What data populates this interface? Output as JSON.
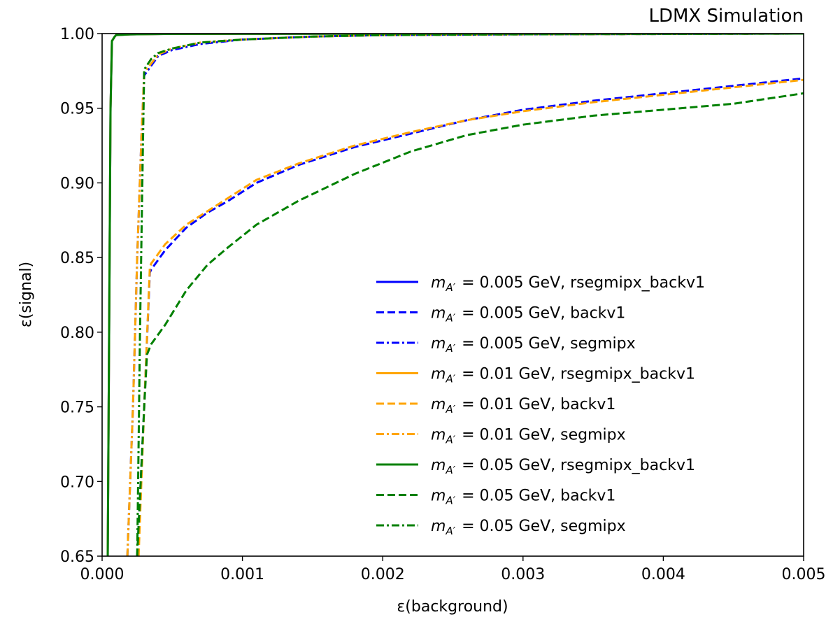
{
  "chart_data": {
    "type": "line",
    "title": "LDMX Simulation",
    "xlabel": "ε(background)",
    "ylabel": "ε(signal)",
    "xlim": [
      0.0,
      0.005
    ],
    "ylim": [
      0.65,
      1.0
    ],
    "xticks": [
      "0.000",
      "0.001",
      "0.002",
      "0.003",
      "0.004",
      "0.005"
    ],
    "yticks": [
      "0.65",
      "0.70",
      "0.75",
      "0.80",
      "0.85",
      "0.90",
      "0.95",
      "1.00"
    ],
    "grid": false,
    "legend_position": "lower-right",
    "colors": {
      "blue": "#0000ff",
      "orange": "#ffa500",
      "green": "#008000"
    },
    "series": [
      {
        "name": "m_A' = 0.005 GeV, rsegmipx_backv1",
        "legend": {
          "prefix": "m",
          "subscript": "A′",
          "text": "= 0.005 GeV, rsegmipx_backv1"
        },
        "color": "#0000ff",
        "dash": "solid",
        "x": [
          4e-05,
          5e-05,
          6e-05,
          7e-05,
          9e-05,
          0.0001,
          0.0002,
          0.0005,
          0.001,
          0.005
        ],
        "y": [
          0.65,
          0.8,
          0.95,
          0.995,
          0.998,
          0.999,
          0.9995,
          0.9998,
          0.9999,
          1.0
        ]
      },
      {
        "name": "m_A' = 0.005 GeV, backv1",
        "legend": {
          "prefix": "m",
          "subscript": "A′",
          "text": "= 0.005 GeV, backv1"
        },
        "color": "#0000ff",
        "dash": "dashed",
        "x": [
          0.00025,
          0.0003,
          0.00034,
          0.00035,
          0.00045,
          0.0006,
          0.00075,
          0.0009,
          0.0011,
          0.0014,
          0.0018,
          0.0022,
          0.0026,
          0.003,
          0.0035,
          0.004,
          0.0045,
          0.005
        ],
        "y": [
          0.65,
          0.75,
          0.84,
          0.842,
          0.855,
          0.87,
          0.88,
          0.888,
          0.9,
          0.912,
          0.924,
          0.933,
          0.942,
          0.949,
          0.955,
          0.96,
          0.965,
          0.97
        ]
      },
      {
        "name": "m_A' = 0.005 GeV, segmipx",
        "legend": {
          "prefix": "m",
          "subscript": "A′",
          "text": "= 0.005 GeV, segmipx"
        },
        "color": "#0000ff",
        "dash": "dashdot",
        "x": [
          0.00018,
          0.00022,
          0.00025,
          0.00028,
          0.0003,
          0.0004,
          0.0005,
          0.0007,
          0.001,
          0.0015,
          0.002,
          0.003,
          0.005
        ],
        "y": [
          0.65,
          0.75,
          0.85,
          0.93,
          0.972,
          0.985,
          0.989,
          0.993,
          0.996,
          0.998,
          0.999,
          0.9995,
          1.0
        ]
      },
      {
        "name": "m_A' = 0.01 GeV, rsegmipx_backv1",
        "legend": {
          "prefix": "m",
          "subscript": "A′",
          "text": "= 0.01 GeV, rsegmipx_backv1"
        },
        "color": "#ffa500",
        "dash": "solid",
        "x": [
          4e-05,
          5e-05,
          6e-05,
          7e-05,
          9e-05,
          0.0001,
          0.0002,
          0.0005,
          0.001,
          0.005
        ],
        "y": [
          0.65,
          0.8,
          0.95,
          0.995,
          0.998,
          0.999,
          0.9995,
          0.9998,
          0.9999,
          1.0
        ]
      },
      {
        "name": "m_A' = 0.01 GeV, backv1",
        "legend": {
          "prefix": "m",
          "subscript": "A′",
          "text": "= 0.01 GeV, backv1"
        },
        "color": "#ffa500",
        "dash": "dashed",
        "x": [
          0.00026,
          0.0003,
          0.00034,
          0.00035,
          0.00045,
          0.0006,
          0.00075,
          0.0009,
          0.0011,
          0.0014,
          0.0018,
          0.0022,
          0.0026,
          0.003,
          0.0035,
          0.004,
          0.0045,
          0.005
        ],
        "y": [
          0.65,
          0.75,
          0.843,
          0.846,
          0.859,
          0.872,
          0.881,
          0.89,
          0.902,
          0.913,
          0.925,
          0.934,
          0.942,
          0.948,
          0.954,
          0.959,
          0.964,
          0.969
        ]
      },
      {
        "name": "m_A' = 0.01 GeV, segmipx",
        "legend": {
          "prefix": "m",
          "subscript": "A′",
          "text": "= 0.01 GeV, segmipx"
        },
        "color": "#ffa500",
        "dash": "dashdot",
        "x": [
          0.00018,
          0.00022,
          0.00025,
          0.00028,
          0.0003,
          0.0004,
          0.0005,
          0.0007,
          0.001,
          0.0015,
          0.002,
          0.003,
          0.005
        ],
        "y": [
          0.65,
          0.75,
          0.85,
          0.93,
          0.974,
          0.986,
          0.99,
          0.994,
          0.996,
          0.998,
          0.999,
          0.9995,
          1.0
        ]
      },
      {
        "name": "m_A' = 0.05 GeV, rsegmipx_backv1",
        "legend": {
          "prefix": "m",
          "subscript": "A′",
          "text": "= 0.05 GeV, rsegmipx_backv1"
        },
        "color": "#008000",
        "dash": "solid",
        "x": [
          4e-05,
          5e-05,
          6e-05,
          7e-05,
          9e-05,
          0.0001,
          0.0002,
          0.0005,
          0.001,
          0.005
        ],
        "y": [
          0.65,
          0.8,
          0.95,
          0.995,
          0.998,
          0.999,
          0.9995,
          0.9998,
          0.9999,
          1.0
        ]
      },
      {
        "name": "m_A' = 0.05 GeV, backv1",
        "legend": {
          "prefix": "m",
          "subscript": "A′",
          "text": "= 0.05 GeV, backv1"
        },
        "color": "#008000",
        "dash": "dashed",
        "x": [
          0.00025,
          0.0003,
          0.00032,
          0.00035,
          0.00045,
          0.0006,
          0.00075,
          0.0009,
          0.0011,
          0.0014,
          0.0018,
          0.0022,
          0.0026,
          0.003,
          0.0035,
          0.004,
          0.0045,
          0.005
        ],
        "y": [
          0.65,
          0.75,
          0.785,
          0.792,
          0.805,
          0.828,
          0.845,
          0.857,
          0.872,
          0.888,
          0.906,
          0.921,
          0.932,
          0.939,
          0.945,
          0.949,
          0.953,
          0.96
        ]
      },
      {
        "name": "m_A' = 0.05 GeV, segmipx",
        "legend": {
          "prefix": "m",
          "subscript": "A′",
          "text": "= 0.05 GeV, segmipx"
        },
        "color": "#008000",
        "dash": "dashdot",
        "x": [
          0.00025,
          0.00027,
          0.00029,
          0.0003,
          0.00035,
          0.0004,
          0.0005,
          0.0007,
          0.001,
          0.0015,
          0.002,
          0.003,
          0.005
        ],
        "y": [
          0.65,
          0.8,
          0.92,
          0.976,
          0.983,
          0.987,
          0.99,
          0.994,
          0.996,
          0.998,
          0.999,
          0.9995,
          1.0
        ]
      }
    ]
  }
}
